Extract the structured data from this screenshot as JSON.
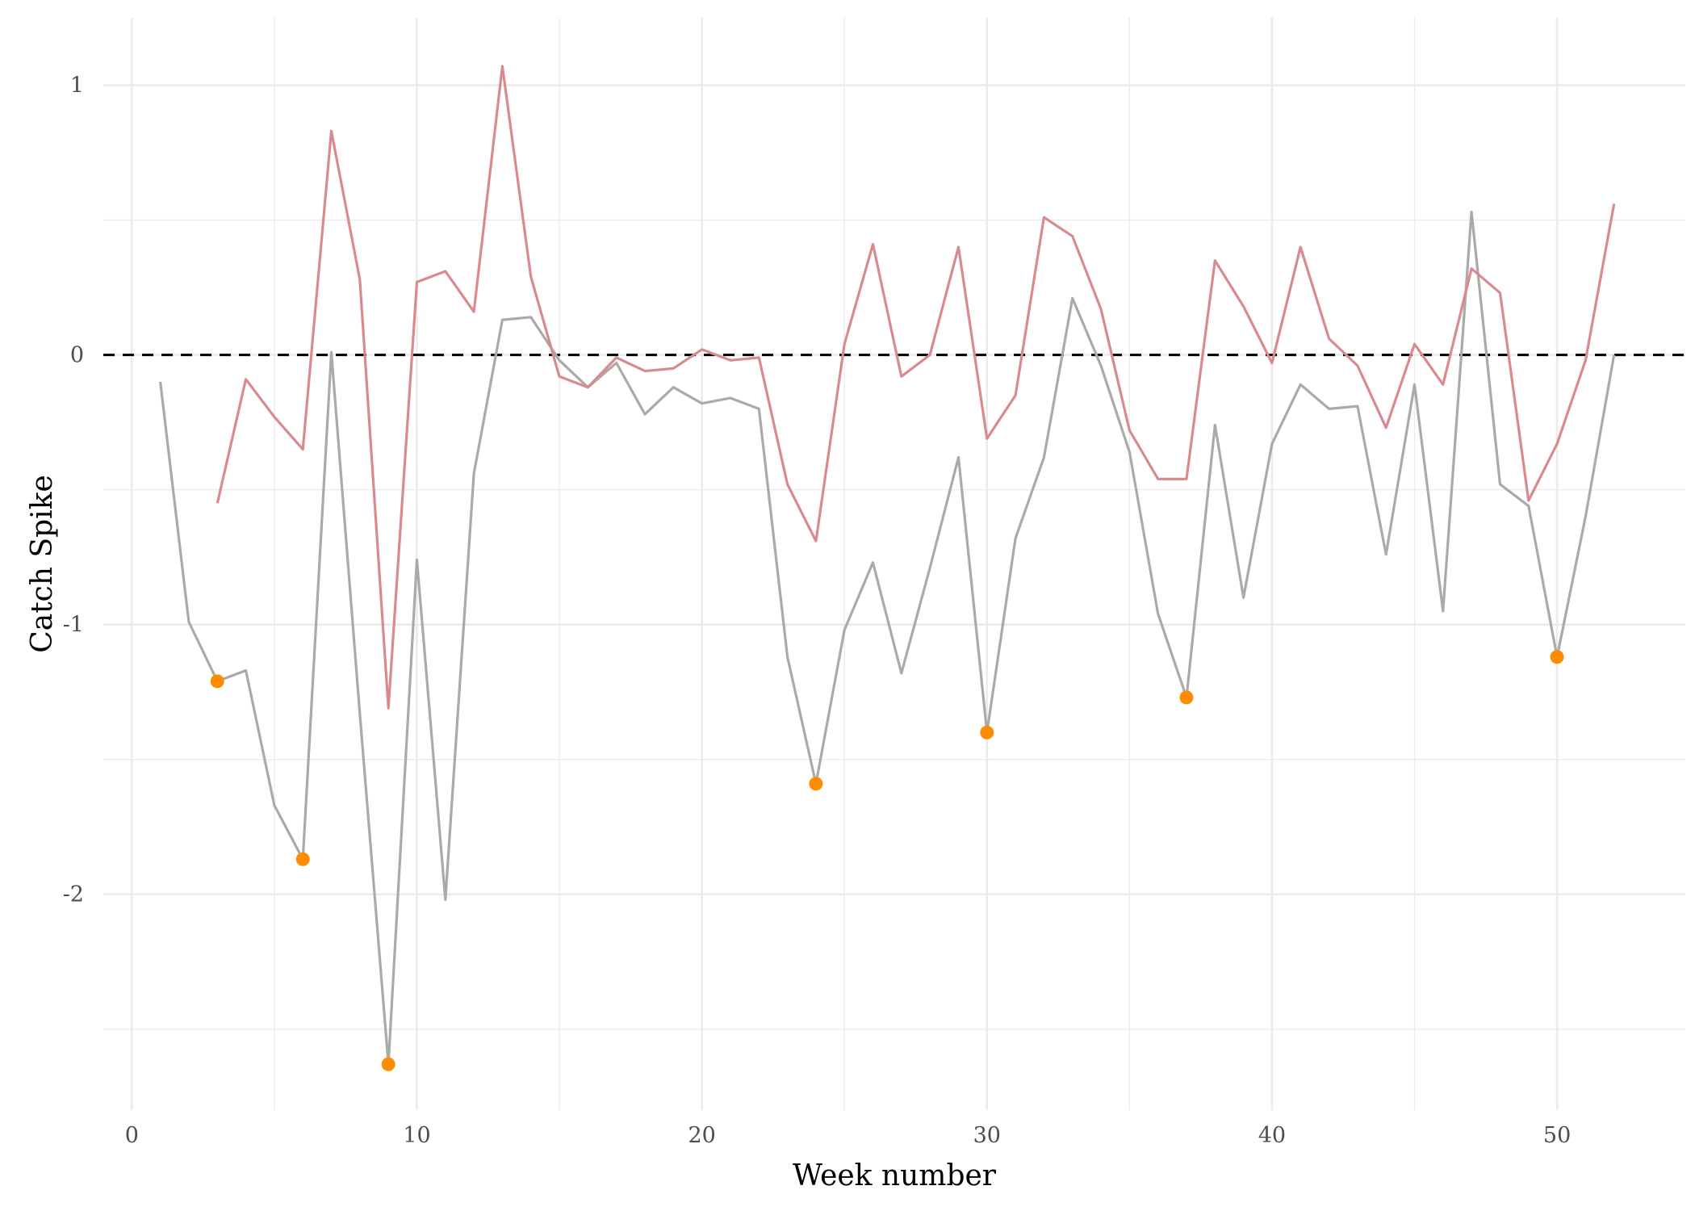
{
  "chart_data": {
    "type": "line",
    "xlabel": "Week number",
    "ylabel": "Catch Spike",
    "xlim": [
      -1,
      54.5
    ],
    "ylim": [
      -2.8,
      1.25
    ],
    "x_ticks": [
      0,
      10,
      20,
      30,
      40,
      50
    ],
    "y_ticks": [
      -2,
      -1,
      0,
      1
    ],
    "x_tick_labels": [
      "0",
      "10",
      "20",
      "30",
      "40",
      "50"
    ],
    "y_tick_labels": [
      "-2",
      "-1",
      "0",
      "1"
    ],
    "grid": true,
    "reference_line": {
      "y": 0,
      "style": "dashed",
      "color": "#000000"
    },
    "series": [
      {
        "color": "#aaaaaa",
        "x": [
          1,
          2,
          3,
          4,
          5,
          6,
          7,
          8,
          9,
          10,
          11,
          12,
          13,
          14,
          15,
          16,
          17,
          18,
          19,
          20,
          21,
          22,
          23,
          24,
          25,
          26,
          27,
          28,
          29,
          30,
          31,
          32,
          33,
          34,
          35,
          36,
          37,
          38,
          39,
          40,
          41,
          42,
          43,
          44,
          45,
          46,
          47,
          48,
          49,
          50,
          51,
          52
        ],
        "y": [
          -0.1,
          -0.99,
          -1.21,
          -1.17,
          -1.67,
          -1.87,
          0.01,
          -1.33,
          -2.63,
          -0.76,
          -2.02,
          -0.44,
          0.13,
          0.14,
          -0.02,
          -0.12,
          -0.03,
          -0.22,
          -0.12,
          -0.18,
          -0.16,
          -0.2,
          -1.12,
          -1.59,
          -1.02,
          -0.77,
          -1.18,
          -0.79,
          -0.38,
          -1.4,
          -0.68,
          -0.38,
          0.21,
          -0.04,
          -0.36,
          -0.96,
          -1.27,
          -0.26,
          -0.9,
          -0.33,
          -0.11,
          -0.2,
          -0.19,
          -0.74,
          -0.11,
          -0.95,
          0.53,
          -0.48,
          -0.56,
          -1.12,
          -0.6,
          0.0
        ]
      },
      {
        "color": "#d98a8f",
        "x": [
          3,
          4,
          5,
          6,
          7,
          8,
          9,
          10,
          11,
          12,
          13,
          14,
          15,
          16,
          17,
          18,
          19,
          20,
          21,
          22,
          23,
          24,
          25,
          26,
          27,
          28,
          29,
          30,
          31,
          32,
          33,
          34,
          35,
          36,
          37,
          38,
          39,
          40,
          41,
          42,
          43,
          44,
          45,
          46,
          47,
          48,
          49,
          50,
          51,
          52
        ],
        "y": [
          -0.55,
          -0.09,
          -0.23,
          -0.35,
          0.83,
          0.28,
          -1.31,
          0.27,
          0.31,
          0.16,
          1.07,
          0.29,
          -0.08,
          -0.12,
          -0.01,
          -0.06,
          -0.05,
          0.02,
          -0.02,
          -0.01,
          -0.48,
          -0.69,
          0.04,
          0.41,
          -0.08,
          0.0,
          0.4,
          -0.31,
          -0.15,
          0.51,
          0.44,
          0.17,
          -0.28,
          -0.46,
          -0.46,
          0.35,
          0.18,
          -0.03,
          0.4,
          0.06,
          -0.04,
          -0.27,
          0.04,
          -0.11,
          0.32,
          0.23,
          -0.54,
          -0.33,
          -0.02,
          0.56
        ]
      }
    ],
    "highlight_points": {
      "color": "#ff8c00",
      "x": [
        3,
        6,
        9,
        24,
        30,
        37,
        50
      ],
      "y": [
        -1.21,
        -1.87,
        -2.63,
        -1.59,
        -1.4,
        -1.27,
        -1.12
      ]
    }
  }
}
